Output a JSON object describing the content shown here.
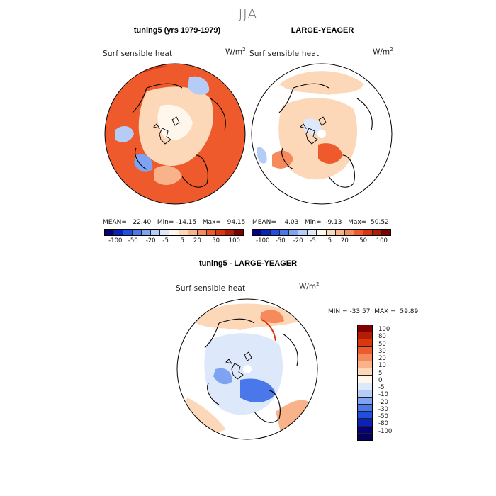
{
  "figure": {
    "season": "JJA"
  },
  "panel_left": {
    "title": "tuning5 (yrs 1979-1979)",
    "variable": "Surf sensible heat",
    "units_base": "W/m",
    "units_exp": "2",
    "mean_label": "MEAN=",
    "mean": "22.40",
    "min_label": "Min=",
    "min": "-14.15",
    "max_label": "Max=",
    "max": "94.15"
  },
  "panel_right": {
    "title": "LARGE-YEAGER",
    "variable": "Surf sensible heat",
    "units_base": "W/m",
    "units_exp": "2",
    "mean_label": "MEAN=",
    "mean": "4.03",
    "min_label": "Min=",
    "min": "-9.13",
    "max_label": "Max=",
    "max": "50.52"
  },
  "panel_diff": {
    "title": "tuning5 - LARGE-YEAGER",
    "variable": "Surf sensible heat",
    "units_base": "W/m",
    "units_exp": "2",
    "min_label": "MIN =",
    "min": "-33.57",
    "max_label": "MAX =",
    "max": "59.89"
  },
  "horizontal_colorbar": {
    "ticks": [
      "-100",
      "-50",
      "-20",
      "-5",
      "5",
      "20",
      "50",
      "100"
    ],
    "colors": [
      "#08007a",
      "#0a22b8",
      "#1f4fe0",
      "#4a78ea",
      "#7ea3f2",
      "#b5ccf7",
      "#dde8fb",
      "#fff6ec",
      "#fcd7b8",
      "#f9b38a",
      "#f58a5c",
      "#ee5a2c",
      "#d9380e",
      "#b31c06",
      "#800000"
    ]
  },
  "vertical_colorbar": {
    "ticks": [
      "100",
      "80",
      "50",
      "30",
      "20",
      "10",
      "5",
      "0",
      "-5",
      "-10",
      "-20",
      "-30",
      "-50",
      "-80",
      "-100"
    ],
    "colors": [
      "#800000",
      "#b31c06",
      "#d9380e",
      "#ee5a2c",
      "#f58a5c",
      "#f9b38a",
      "#fcd7b8",
      "#fff6ec",
      "#dde8fb",
      "#b5ccf7",
      "#7ea3f2",
      "#4a78ea",
      "#1f4fe0",
      "#0a22b8",
      "#08007a",
      "#050060"
    ]
  }
}
